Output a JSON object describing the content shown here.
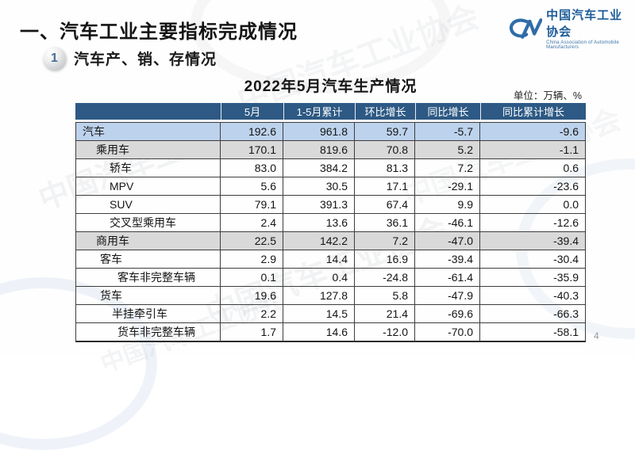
{
  "page": {
    "title": "一、汽车工业主要指标完成情况",
    "page_number": "4"
  },
  "logo": {
    "name_cn": "中国汽车工业协会",
    "name_en": "China Association of Automobile Manufacturers"
  },
  "section": {
    "number": "1",
    "title": "汽车产、销、存情况"
  },
  "table": {
    "title": "2022年5月汽车生产情况",
    "unit_note": "单位：万辆、%",
    "columns": [
      "",
      "5月",
      "1-5月累计",
      "环比增长",
      "同比增长",
      "同比累计增长"
    ],
    "rows": [
      {
        "label": "汽车",
        "indent": 8,
        "bg": "blue",
        "values": [
          "192.6",
          "961.8",
          "59.7",
          "-5.7",
          "-9.6"
        ]
      },
      {
        "label": "乘用车",
        "indent": 25,
        "bg": "gray",
        "values": [
          "170.1",
          "819.6",
          "70.8",
          "5.2",
          "-1.1"
        ]
      },
      {
        "label": "轿车",
        "indent": 42,
        "bg": "white",
        "values": [
          "83.0",
          "384.2",
          "81.3",
          "7.2",
          "0.6"
        ]
      },
      {
        "label": "MPV",
        "indent": 42,
        "bg": "white",
        "values": [
          "5.6",
          "30.5",
          "17.1",
          "-29.1",
          "-23.6"
        ]
      },
      {
        "label": "SUV",
        "indent": 42,
        "bg": "white",
        "values": [
          "79.1",
          "391.3",
          "67.4",
          "9.9",
          "0.0"
        ]
      },
      {
        "label": "交叉型乘用车",
        "indent": 42,
        "bg": "white",
        "values": [
          "2.4",
          "13.6",
          "36.1",
          "-46.1",
          "-12.6"
        ]
      },
      {
        "label": "商用车",
        "indent": 25,
        "bg": "gray",
        "values": [
          "22.5",
          "142.2",
          "7.2",
          "-47.0",
          "-39.4"
        ]
      },
      {
        "label": "客车",
        "indent": 30,
        "bg": "white",
        "values": [
          "2.9",
          "14.4",
          "16.9",
          "-39.4",
          "-30.4"
        ]
      },
      {
        "label": "客车非完整车辆",
        "indent": 52,
        "bg": "white",
        "values": [
          "0.1",
          "0.4",
          "-24.8",
          "-61.4",
          "-35.9"
        ]
      },
      {
        "label": "货车",
        "indent": 30,
        "bg": "white",
        "values": [
          "19.6",
          "127.8",
          "5.8",
          "-47.9",
          "-40.3"
        ]
      },
      {
        "label": "半挂牵引车",
        "indent": 45,
        "bg": "white",
        "values": [
          "2.2",
          "14.5",
          "21.4",
          "-69.6",
          "-66.3"
        ]
      },
      {
        "label": "货车非完整车辆",
        "indent": 52,
        "bg": "white",
        "values": [
          "1.7",
          "14.6",
          "-12.0",
          "-70.0",
          "-58.1"
        ]
      }
    ]
  },
  "watermark": {
    "text": "中国汽车工业协会"
  },
  "colors": {
    "header_bg": "#2d5984",
    "row_blue": "#bdd2ec",
    "row_gray": "#d9d9d9",
    "logo_blue": "#2f6da8",
    "title_text": "#141414"
  }
}
